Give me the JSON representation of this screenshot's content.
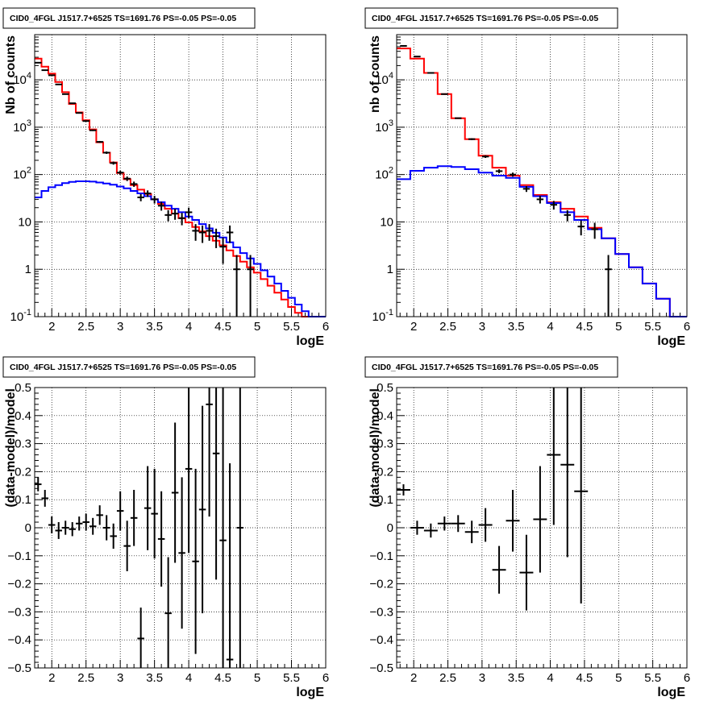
{
  "panel_title": "CID0_4FGL J1517.7+6525 TS=1691.76 PS=-0.05 PS=-0.05",
  "colors": {
    "data": "#000000",
    "total_model": "#ff0000",
    "source_model": "#0000ff",
    "grid": "#000000"
  },
  "chart_data": [
    {
      "type": "line",
      "xlabel": "logE",
      "ylabel": "Nb of counts",
      "yscale": "log",
      "xlim": [
        1.75,
        6
      ],
      "ylim": [
        0.1,
        90000
      ],
      "grid": true,
      "xticks": [
        2,
        2.5,
        3,
        3.5,
        4,
        4.5,
        5,
        5.5,
        6
      ],
      "xtick_labels": [
        "2",
        "2.5",
        "3",
        "3.5",
        "4",
        "4.5",
        "5",
        "5.5",
        "6"
      ],
      "yticks": [
        0.1,
        1,
        10,
        100,
        1000,
        10000
      ],
      "ytick_labels": [
        "10^-1",
        "1",
        "10",
        "10^2",
        "10^3",
        "10^4"
      ],
      "bin_edges": [
        1.75,
        1.85,
        1.95,
        2.05,
        2.15,
        2.25,
        2.35,
        2.45,
        2.55,
        2.65,
        2.75,
        2.85,
        2.95,
        3.05,
        3.15,
        3.25,
        3.35,
        3.45,
        3.55,
        3.65,
        3.75,
        3.85,
        3.95,
        4.05,
        4.15,
        4.25,
        4.35,
        4.45,
        4.55,
        4.65,
        4.75,
        4.85,
        4.95,
        5.05,
        5.15,
        5.25,
        5.35,
        5.45,
        5.55,
        5.65,
        5.75,
        5.85,
        5.95,
        6.0
      ],
      "series": [
        {
          "name": "",
          "role": "total_model",
          "values": [
            28000,
            19000,
            13500,
            9000,
            5500,
            3100,
            2050,
            1400,
            900,
            480,
            290,
            180,
            108,
            80,
            60,
            48,
            39,
            30,
            24,
            19,
            15,
            12,
            9.8,
            7.8,
            6.3,
            5.0,
            4.0,
            3.2,
            2.5,
            1.9,
            1.45,
            1.1,
            0.85,
            0.62,
            0.45,
            0.32,
            0.23,
            0.16,
            0.12,
            0.1,
            0.1,
            0.1,
            0.1
          ]
        },
        {
          "name": "",
          "role": "source_model",
          "values": [
            33,
            45,
            54,
            60,
            66,
            70,
            72,
            72,
            71,
            68,
            65,
            61,
            56,
            51,
            45,
            40,
            35,
            30,
            26,
            22,
            19,
            16,
            13,
            11,
            9.0,
            7.3,
            5.9,
            4.7,
            3.7,
            2.9,
            2.2,
            1.7,
            1.3,
            0.95,
            0.7,
            0.5,
            0.35,
            0.25,
            0.18,
            0.13,
            0.1,
            0.1,
            0.1
          ]
        }
      ],
      "points": [
        {
          "x": 1.8,
          "y": 23000,
          "yerr": 150
        },
        {
          "x": 1.9,
          "y": 16000,
          "yerr": 126
        },
        {
          "x": 2.0,
          "y": 12500,
          "yerr": 112
        },
        {
          "x": 2.1,
          "y": 8000,
          "yerr": 90
        },
        {
          "x": 2.2,
          "y": 5000,
          "yerr": 70
        },
        {
          "x": 2.3,
          "y": 3200,
          "yerr": 56
        },
        {
          "x": 2.4,
          "y": 2000,
          "yerr": 45
        },
        {
          "x": 2.5,
          "y": 1350,
          "yerr": 37
        },
        {
          "x": 2.6,
          "y": 860,
          "yerr": 29
        },
        {
          "x": 2.7,
          "y": 490,
          "yerr": 22
        },
        {
          "x": 2.8,
          "y": 290,
          "yerr": 17
        },
        {
          "x": 2.9,
          "y": 175,
          "yerr": 13
        },
        {
          "x": 3.0,
          "y": 110,
          "yerr": 10.5
        },
        {
          "x": 3.1,
          "y": 82,
          "yerr": 9
        },
        {
          "x": 3.2,
          "y": 63,
          "yerr": 8
        },
        {
          "x": 3.3,
          "y": 33,
          "yerr": 5.7
        },
        {
          "x": 3.4,
          "y": 40,
          "yerr": 6.3
        },
        {
          "x": 3.5,
          "y": 30,
          "yerr": 5.5
        },
        {
          "x": 3.6,
          "y": 22,
          "yerr": 4.7
        },
        {
          "x": 3.7,
          "y": 14,
          "yerr": 3.7
        },
        {
          "x": 3.8,
          "y": 15,
          "yerr": 3.9
        },
        {
          "x": 3.9,
          "y": 12,
          "yerr": 3.5
        },
        {
          "x": 4.0,
          "y": 16,
          "yerr": 4
        },
        {
          "x": 4.1,
          "y": 6.5,
          "yerr": 2.5
        },
        {
          "x": 4.2,
          "y": 6.0,
          "yerr": 2.4
        },
        {
          "x": 4.3,
          "y": 6.5,
          "yerr": 2.5
        },
        {
          "x": 4.4,
          "y": 5.0,
          "yerr": 2.2
        },
        {
          "x": 4.5,
          "y": 3.0,
          "yerr": 1.7
        },
        {
          "x": 4.6,
          "y": 6.0,
          "yerr": 2.4
        },
        {
          "x": 4.7,
          "y": 1.0,
          "yerr": 1.0
        },
        {
          "x": 4.9,
          "y": 1.0,
          "yerr": 1.0
        }
      ]
    },
    {
      "type": "line",
      "xlabel": "logE",
      "ylabel": "nb of counts",
      "yscale": "log",
      "xlim": [
        1.75,
        6
      ],
      "ylim": [
        0.1,
        90000
      ],
      "grid": true,
      "xticks": [
        2,
        2.5,
        3,
        3.5,
        4,
        4.5,
        5,
        5.5,
        6
      ],
      "xtick_labels": [
        "2",
        "2.5",
        "3",
        "3.5",
        "4",
        "4.5",
        "5",
        "5.5",
        "6"
      ],
      "yticks": [
        0.1,
        1,
        10,
        100,
        1000,
        10000
      ],
      "ytick_labels": [
        "10^-1",
        "1",
        "10",
        "10^2",
        "10^3",
        "10^4"
      ],
      "bin_edges": [
        1.75,
        1.95,
        2.15,
        2.35,
        2.55,
        2.75,
        2.95,
        3.15,
        3.35,
        3.55,
        3.75,
        3.95,
        4.15,
        4.35,
        4.55,
        4.75,
        4.95,
        5.15,
        5.35,
        5.55,
        5.75,
        5.95,
        6.0
      ],
      "series": [
        {
          "name": "",
          "role": "total_model",
          "values": [
            46000,
            28000,
            14000,
            5000,
            1550,
            560,
            250,
            140,
            95,
            60,
            37,
            26,
            19,
            13,
            7.5,
            4.5,
            2.1,
            1.1,
            0.5,
            0.24,
            0.1,
            0.1
          ]
        },
        {
          "name": "",
          "role": "source_model",
          "values": [
            80,
            120,
            140,
            150,
            145,
            130,
            110,
            95,
            85,
            55,
            35,
            25,
            16,
            11,
            7,
            4.5,
            2.1,
            1.1,
            0.5,
            0.24,
            0.1,
            0.1
          ]
        }
      ],
      "points": [
        {
          "x": 1.85,
          "y": 52000,
          "yerr": 228
        },
        {
          "x": 2.05,
          "y": 31000,
          "yerr": 176
        },
        {
          "x": 2.25,
          "y": 14000,
          "yerr": 118
        },
        {
          "x": 2.45,
          "y": 5000,
          "yerr": 71
        },
        {
          "x": 2.65,
          "y": 1550,
          "yerr": 39
        },
        {
          "x": 2.85,
          "y": 560,
          "yerr": 24
        },
        {
          "x": 3.05,
          "y": 240,
          "yerr": 15.5
        },
        {
          "x": 3.25,
          "y": 118,
          "yerr": 11
        },
        {
          "x": 3.45,
          "y": 100,
          "yerr": 10
        },
        {
          "x": 3.65,
          "y": 50,
          "yerr": 7
        },
        {
          "x": 3.85,
          "y": 30,
          "yerr": 5.5
        },
        {
          "x": 4.05,
          "y": 23,
          "yerr": 4.8
        },
        {
          "x": 4.25,
          "y": 14,
          "yerr": 3.7
        },
        {
          "x": 4.45,
          "y": 8,
          "yerr": 2.8
        },
        {
          "x": 4.65,
          "y": 7,
          "yerr": 2.6
        },
        {
          "x": 4.85,
          "y": 1.0,
          "yerr": 1.0
        }
      ]
    },
    {
      "type": "scatter",
      "xlabel": "logE",
      "ylabel": "(data-model)/model",
      "xlim": [
        1.75,
        6
      ],
      "ylim": [
        -0.5,
        0.5
      ],
      "grid": true,
      "xticks": [
        2,
        2.5,
        3,
        3.5,
        4,
        4.5,
        5,
        5.5,
        6
      ],
      "xtick_labels": [
        "2",
        "2.5",
        "3",
        "3.5",
        "4",
        "4.5",
        "5",
        "5.5",
        "6"
      ],
      "yticks": [
        -0.5,
        -0.4,
        -0.3,
        -0.2,
        -0.1,
        0,
        0.1,
        0.2,
        0.3,
        0.4,
        0.5
      ],
      "ytick_labels": [
        "−0.5",
        "−0.4",
        "−0.3",
        "−0.2",
        "−0.1",
        "0",
        "0.1",
        "0.2",
        "0.3",
        "0.4",
        "0.5"
      ],
      "xerr": 0.05,
      "points": [
        {
          "x": 1.8,
          "y": 0.155,
          "yerr": 0.025
        },
        {
          "x": 1.9,
          "y": 0.105,
          "yerr": 0.03
        },
        {
          "x": 2.0,
          "y": 0.01,
          "yerr": 0.03
        },
        {
          "x": 2.1,
          "y": -0.01,
          "yerr": 0.03
        },
        {
          "x": 2.2,
          "y": 0.0,
          "yerr": 0.025
        },
        {
          "x": 2.3,
          "y": -0.005,
          "yerr": 0.025
        },
        {
          "x": 2.4,
          "y": 0.015,
          "yerr": 0.025
        },
        {
          "x": 2.5,
          "y": 0.02,
          "yerr": 0.03
        },
        {
          "x": 2.6,
          "y": 0.005,
          "yerr": 0.03
        },
        {
          "x": 2.7,
          "y": 0.045,
          "yerr": 0.035
        },
        {
          "x": 2.8,
          "y": 0.0,
          "yerr": 0.045
        },
        {
          "x": 2.9,
          "y": -0.03,
          "yerr": 0.045
        },
        {
          "x": 3.0,
          "y": 0.06,
          "yerr": 0.07
        },
        {
          "x": 3.1,
          "y": -0.065,
          "yerr": 0.09
        },
        {
          "x": 3.2,
          "y": 0.035,
          "yerr": 0.1
        },
        {
          "x": 3.3,
          "y": -0.395,
          "yerr": 0.11
        },
        {
          "x": 3.4,
          "y": 0.07,
          "yerr": 0.15
        },
        {
          "x": 3.5,
          "y": 0.05,
          "yerr": 0.16
        },
        {
          "x": 3.6,
          "y": -0.04,
          "yerr": 0.17
        },
        {
          "x": 3.7,
          "y": -0.305,
          "yerr": 0.2
        },
        {
          "x": 3.8,
          "y": 0.125,
          "yerr": 0.25
        },
        {
          "x": 3.9,
          "y": -0.09,
          "yerr": 0.27
        },
        {
          "x": 4.0,
          "y": 0.21,
          "yerr": 0.3
        },
        {
          "x": 4.1,
          "y": -0.12,
          "yerr": 0.33
        },
        {
          "x": 4.2,
          "y": 0.065,
          "yerr": 0.37
        },
        {
          "x": 4.3,
          "y": 0.44,
          "yerr": 0.4
        },
        {
          "x": 4.4,
          "y": 0.265,
          "yerr": 0.45
        },
        {
          "x": 4.5,
          "y": -0.045,
          "yerr": 0.55
        },
        {
          "x": 4.6,
          "y": -0.47,
          "yerr": 0.7
        },
        {
          "x": 4.75,
          "y": 0.0,
          "yerr": 0.9
        }
      ]
    },
    {
      "type": "scatter",
      "xlabel": "logE",
      "ylabel": "(data-model)/model",
      "xlim": [
        1.75,
        6
      ],
      "ylim": [
        -0.5,
        0.5
      ],
      "grid": true,
      "xticks": [
        2,
        2.5,
        3,
        3.5,
        4,
        4.5,
        5,
        5.5,
        6
      ],
      "xtick_labels": [
        "2",
        "2.5",
        "3",
        "3.5",
        "4",
        "4.5",
        "5",
        "5.5",
        "6"
      ],
      "yticks": [
        -0.5,
        -0.4,
        -0.3,
        -0.2,
        -0.1,
        0,
        0.1,
        0.2,
        0.3,
        0.4,
        0.5
      ],
      "ytick_labels": [
        "−0.5",
        "−0.4",
        "−0.3",
        "−0.2",
        "−0.1",
        "0",
        "0.1",
        "0.2",
        "0.3",
        "0.4",
        "0.5"
      ],
      "xerr": 0.1,
      "points": [
        {
          "x": 1.85,
          "y": 0.135,
          "yerr": 0.02
        },
        {
          "x": 2.05,
          "y": 0.0,
          "yerr": 0.025
        },
        {
          "x": 2.25,
          "y": -0.01,
          "yerr": 0.025
        },
        {
          "x": 2.45,
          "y": 0.015,
          "yerr": 0.025
        },
        {
          "x": 2.65,
          "y": 0.015,
          "yerr": 0.03
        },
        {
          "x": 2.85,
          "y": -0.015,
          "yerr": 0.04
        },
        {
          "x": 3.05,
          "y": 0.01,
          "yerr": 0.06
        },
        {
          "x": 3.25,
          "y": -0.15,
          "yerr": 0.085
        },
        {
          "x": 3.45,
          "y": 0.025,
          "yerr": 0.11
        },
        {
          "x": 3.65,
          "y": -0.16,
          "yerr": 0.135
        },
        {
          "x": 3.85,
          "y": 0.03,
          "yerr": 0.19
        },
        {
          "x": 4.05,
          "y": 0.26,
          "yerr": 0.25
        },
        {
          "x": 4.25,
          "y": 0.225,
          "yerr": 0.33
        },
        {
          "x": 4.45,
          "y": 0.13,
          "yerr": 0.4
        }
      ]
    }
  ]
}
